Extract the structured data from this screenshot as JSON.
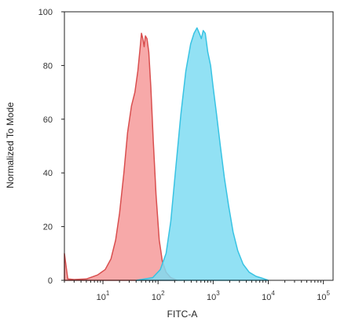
{
  "chart_data": {
    "type": "area",
    "title": "",
    "xlabel": "FITC-A",
    "ylabel": "Normalized To Mode",
    "xscale": "log",
    "xlim": [
      2,
      150000
    ],
    "ylim": [
      0,
      100
    ],
    "x_tick_values": [
      10,
      100,
      1000,
      10000,
      100000
    ],
    "x_tick_labels": [
      {
        "base": "10",
        "exp": "1"
      },
      {
        "base": "10",
        "exp": "2"
      },
      {
        "base": "10",
        "exp": "3"
      },
      {
        "base": "10",
        "exp": "4"
      },
      {
        "base": "10",
        "exp": "5"
      }
    ],
    "y_ticks": [
      0,
      20,
      40,
      60,
      80,
      100
    ],
    "grid": false,
    "legend": "none",
    "series": [
      {
        "fill": "#f6a0a0",
        "stroke": "#d94f4f",
        "points": [
          [
            2.0,
            10
          ],
          [
            2.3,
            0.5
          ],
          [
            3,
            0.3
          ],
          [
            5,
            0.5
          ],
          [
            8,
            2
          ],
          [
            11,
            4
          ],
          [
            14,
            8
          ],
          [
            17,
            15
          ],
          [
            20,
            25
          ],
          [
            24,
            40
          ],
          [
            28,
            55
          ],
          [
            33,
            65
          ],
          [
            38,
            70
          ],
          [
            43,
            78
          ],
          [
            47,
            86
          ],
          [
            50,
            92
          ],
          [
            53,
            90
          ],
          [
            56,
            87
          ],
          [
            59,
            91
          ],
          [
            63,
            90
          ],
          [
            68,
            85
          ],
          [
            74,
            72
          ],
          [
            82,
            52
          ],
          [
            92,
            32
          ],
          [
            105,
            15
          ],
          [
            120,
            7
          ],
          [
            140,
            3
          ],
          [
            170,
            1
          ],
          [
            220,
            0
          ]
        ]
      },
      {
        "fill": "#7fdcf2",
        "stroke": "#38c3e3",
        "points": [
          [
            40,
            0
          ],
          [
            80,
            1
          ],
          [
            110,
            4
          ],
          [
            140,
            10
          ],
          [
            170,
            22
          ],
          [
            210,
            42
          ],
          [
            260,
            62
          ],
          [
            320,
            78
          ],
          [
            390,
            88
          ],
          [
            450,
            92
          ],
          [
            510,
            94
          ],
          [
            560,
            92
          ],
          [
            610,
            90
          ],
          [
            660,
            93
          ],
          [
            720,
            92
          ],
          [
            800,
            85
          ],
          [
            900,
            80
          ],
          [
            1000,
            72
          ],
          [
            1150,
            62
          ],
          [
            1350,
            50
          ],
          [
            1600,
            38
          ],
          [
            1900,
            28
          ],
          [
            2300,
            18
          ],
          [
            2800,
            11
          ],
          [
            3500,
            6
          ],
          [
            4500,
            3
          ],
          [
            6000,
            1.5
          ],
          [
            8000,
            0.7
          ],
          [
            10000,
            0
          ]
        ]
      }
    ]
  }
}
